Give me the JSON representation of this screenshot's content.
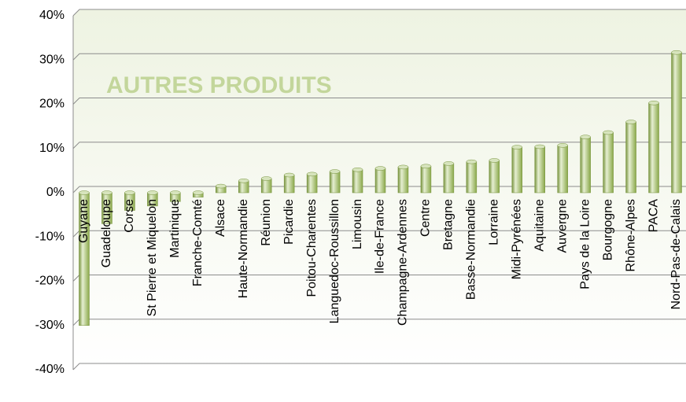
{
  "chart_data": {
    "type": "bar",
    "title": "AUTRES PRODUITS",
    "categories": [
      "Guyane",
      "Guadeloupe",
      "Corse",
      "St Pierre et Miquelon",
      "Martinique",
      "Franche-Comté",
      "Alsace",
      "Haute-Normandie",
      "Réunion",
      "Picardie",
      "Poitou-Charentes",
      "Languedoc-Roussillon",
      "Limousin",
      "Ile-de-France",
      "Champagne-Ardennes",
      "Centre",
      "Bretagne",
      "Basse-Normandie",
      "Lorraine",
      "Midi-Pyrénées",
      "Aquitaine",
      "Auvergne",
      "Pays de la Loire",
      "Bourgogne",
      "Rhône-Alpes",
      "PACA",
      "Nord-Pas-de-Calais"
    ],
    "values": [
      -30,
      -7,
      -4,
      -3,
      -2,
      -1,
      1.5,
      2.7,
      3.2,
      4,
      4.2,
      4.8,
      5.2,
      5.5,
      5.8,
      6,
      6.6,
      7,
      7.3,
      10.3,
      10.4,
      10.7,
      12.6,
      13.6,
      16,
      20.3,
      31.7
    ],
    "color": "#9bbb59",
    "ylim": [
      -40,
      40
    ],
    "yticks": [
      {
        "value": -40,
        "label": "-40%"
      },
      {
        "value": -30,
        "label": "-30%"
      },
      {
        "value": -20,
        "label": "-20%"
      },
      {
        "value": -10,
        "label": "-10%"
      },
      {
        "value": 0,
        "label": "0%"
      },
      {
        "value": 10,
        "label": "10%"
      },
      {
        "value": 20,
        "label": "20%"
      },
      {
        "value": 30,
        "label": "30%"
      },
      {
        "value": 40,
        "label": "40%"
      }
    ],
    "grid": true
  }
}
